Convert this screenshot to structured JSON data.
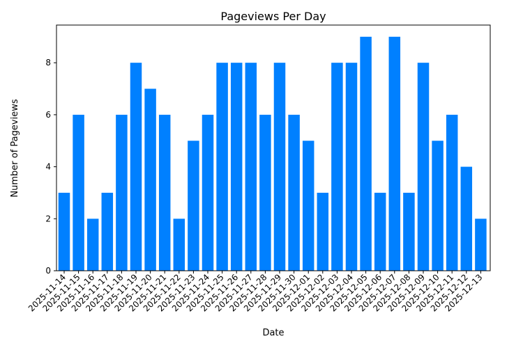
{
  "chart_data": {
    "type": "bar",
    "title": "Pageviews Per Day",
    "xlabel": "Date",
    "ylabel": "Number of Pageviews",
    "ylim": [
      0,
      9.45
    ],
    "yticks": [
      0,
      2,
      4,
      6,
      8
    ],
    "bar_color": "#0080ff",
    "grid": false,
    "categories": [
      "2025-11-14",
      "2025-11-15",
      "2025-11-16",
      "2025-11-17",
      "2025-11-18",
      "2025-11-19",
      "2025-11-20",
      "2025-11-21",
      "2025-11-22",
      "2025-11-23",
      "2025-11-24",
      "2025-11-25",
      "2025-11-26",
      "2025-11-27",
      "2025-11-28",
      "2025-11-29",
      "2025-11-30",
      "2025-12-01",
      "2025-12-02",
      "2025-12-03",
      "2025-12-04",
      "2025-12-05",
      "2025-12-06",
      "2025-12-07",
      "2025-12-08",
      "2025-12-09",
      "2025-12-10",
      "2025-12-11",
      "2025-12-12",
      "2025-12-13"
    ],
    "values": [
      3,
      6,
      2,
      3,
      6,
      8,
      7,
      6,
      2,
      5,
      6,
      8,
      8,
      8,
      6,
      8,
      6,
      5,
      3,
      8,
      8,
      9,
      3,
      9,
      3,
      8,
      5,
      6,
      4,
      2
    ]
  }
}
